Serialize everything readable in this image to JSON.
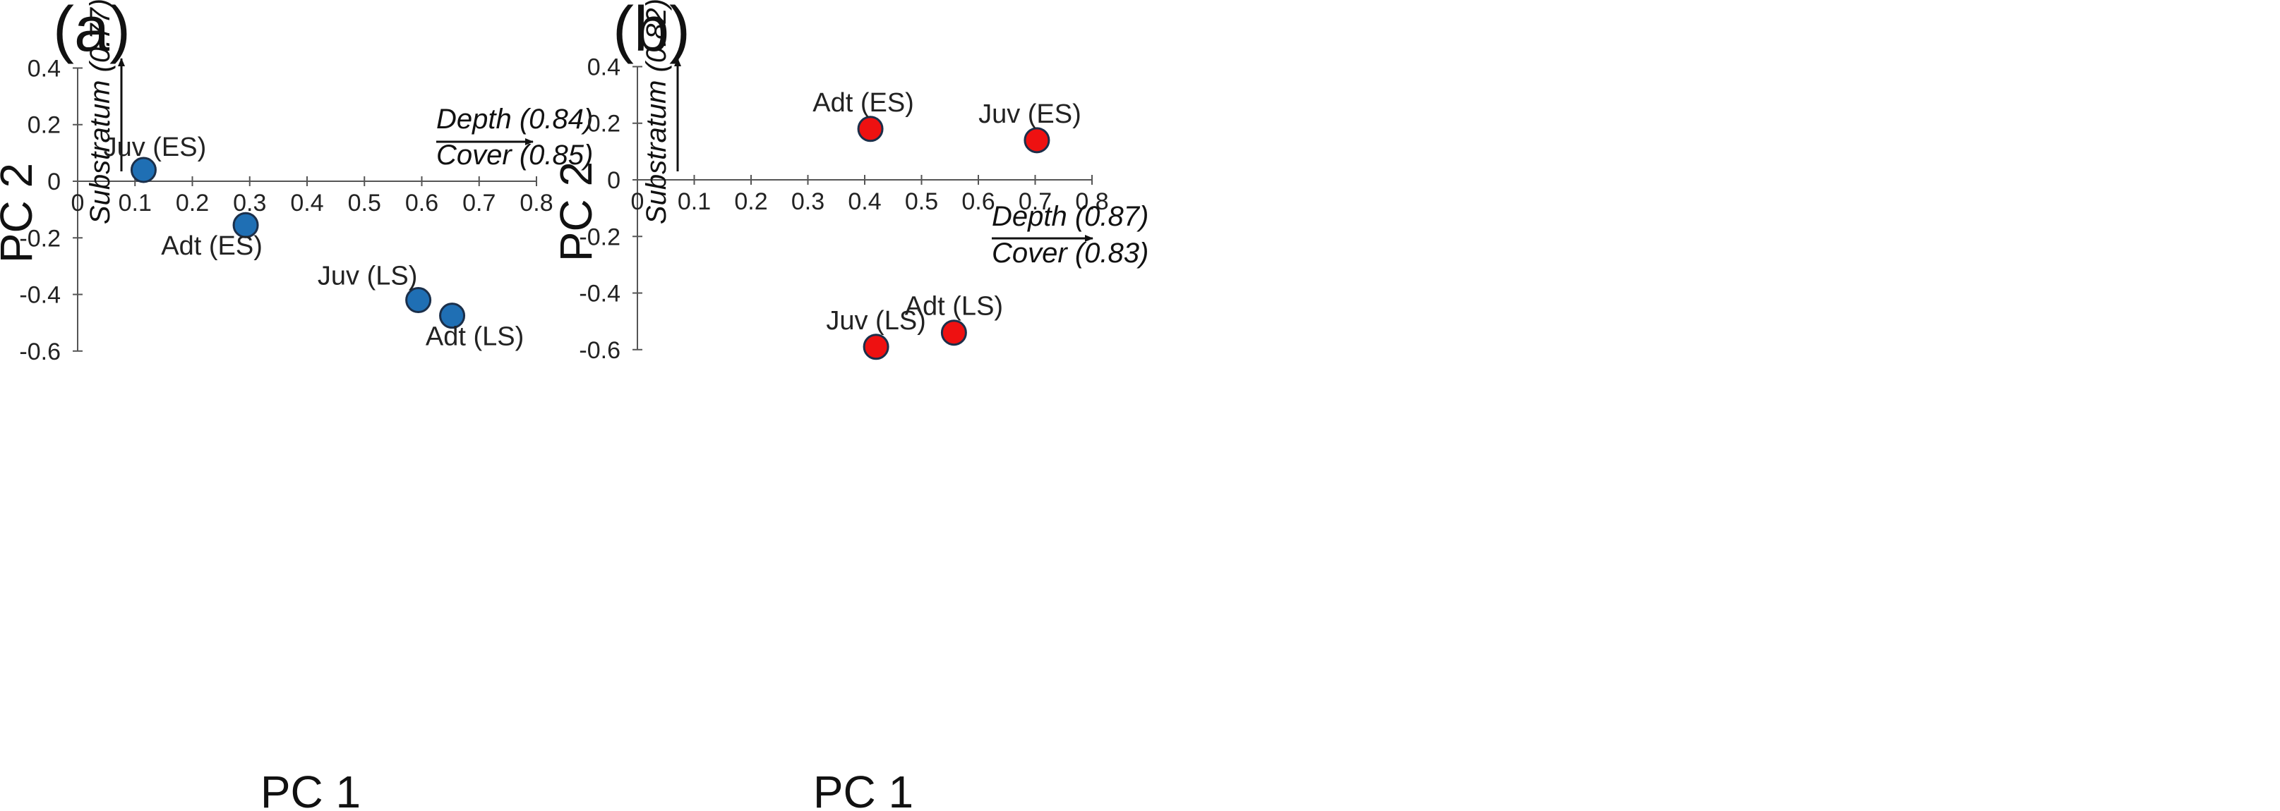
{
  "chart_data": [
    {
      "type": "scatter",
      "panel": "(a)",
      "xlabel": "PC 1",
      "ylabel": "PC 2",
      "xlim": [
        0,
        0.8
      ],
      "ylim": [
        -0.6,
        0.4
      ],
      "x_ticks": [
        "0",
        "0.1",
        "0.2",
        "0.3",
        "0.4",
        "0.5",
        "0.6",
        "0.7",
        "0.8"
      ],
      "y_ticks": [
        "0.4",
        "0.2",
        "0",
        "-0.2",
        "-0.4",
        "-0.6"
      ],
      "marker_color": "#1f6fb4",
      "points": [
        {
          "label": "Juv (ES)",
          "x": 0.115,
          "y": 0.04
        },
        {
          "label": "Adt (ES)",
          "x": 0.293,
          "y": -0.155
        },
        {
          "label": "Juv (LS)",
          "x": 0.594,
          "y": -0.42
        },
        {
          "label": "Adt (LS)",
          "x": 0.653,
          "y": -0.475
        }
      ],
      "vertical_arrow": {
        "label": "Substratum (0.77)"
      },
      "horizontal_arrow": {
        "label_top": "Depth (0.84)",
        "label_bottom": "Cover (0.85)"
      }
    },
    {
      "type": "scatter",
      "panel": "(b)",
      "xlabel": "PC 1",
      "ylabel": "PC 2",
      "xlim": [
        0,
        0.8
      ],
      "ylim": [
        -0.6,
        0.4
      ],
      "x_ticks": [
        "0",
        "0.1",
        "0.2",
        "0.3",
        "0.4",
        "0.5",
        "0.6",
        "0.7",
        "0.8"
      ],
      "y_ticks": [
        "0.4",
        "0.2",
        "0",
        "-0.2",
        "-0.4",
        "-0.6"
      ],
      "marker_color": "#ee1111",
      "points": [
        {
          "label": "Adt (ES)",
          "x": 0.41,
          "y": 0.18
        },
        {
          "label": "Juv (ES)",
          "x": 0.703,
          "y": 0.14
        },
        {
          "label": "Juv (LS)",
          "x": 0.42,
          "y": -0.59
        },
        {
          "label": "Adt (LS)",
          "x": 0.557,
          "y": -0.54
        }
      ],
      "vertical_arrow": {
        "label": "Substratum (0.82)"
      },
      "horizontal_arrow": {
        "label_top": "Depth (0.87)",
        "label_bottom": "Cover (0.83)"
      }
    }
  ]
}
